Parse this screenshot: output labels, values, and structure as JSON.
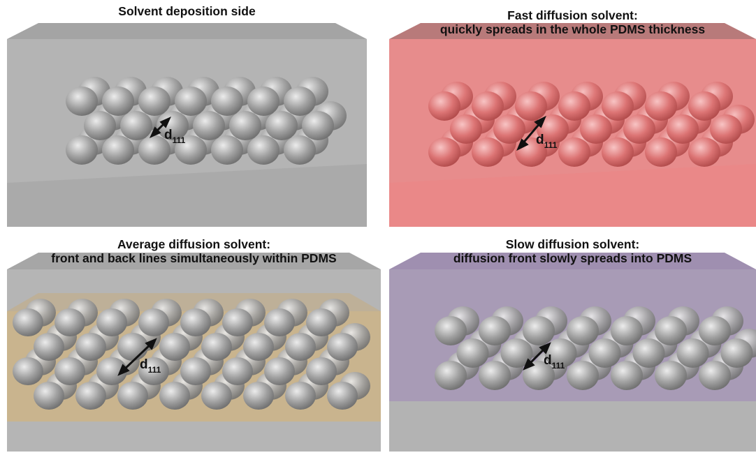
{
  "panels": [
    {
      "id": "p1",
      "caption_lines": [
        "Solvent deposition side"
      ],
      "label_main": "d",
      "label_sub": "111",
      "colors": {
        "top": "#a4a4a4",
        "front": "#b4b4b4",
        "bottom": "#aaaaaa",
        "band": null,
        "sphere_dark": "#6e6e6e",
        "sphere_mid": "#a2a2a2",
        "sphere_light": "#ececec"
      }
    },
    {
      "id": "p2",
      "caption_lines": [
        "Fast diffusion solvent:",
        "quickly spreads in the whole PDMS thickness"
      ],
      "label_main": "d",
      "label_sub": "111",
      "colors": {
        "top": "#b87a7a",
        "front": "#e78c8c",
        "bottom": "#ea8888",
        "band": null,
        "sphere_dark": "#b04a4a",
        "sphere_mid": "#dc7474",
        "sphere_light": "#f8c4c4"
      }
    },
    {
      "id": "p3",
      "caption_lines": [
        "Average diffusion solvent:",
        "front and back lines simultaneously within PDMS"
      ],
      "label_main": "d",
      "label_sub": "111",
      "colors": {
        "top": "#a6a6a6",
        "front": "#b5b5b5",
        "bottom": "#a9a9a9",
        "band": "#c9b48e",
        "sphere_dark": "#6e6e6e",
        "sphere_mid": "#a2a2a2",
        "sphere_light": "#ececec"
      }
    },
    {
      "id": "p4",
      "caption_lines": [
        "Slow diffusion solvent:",
        "diffusion front slowly spreads into PDMS"
      ],
      "label_main": "d",
      "label_sub": "111",
      "colors": {
        "top": "#9f8fb0",
        "front": "#a89bb6",
        "bottom": "#b3b3b3",
        "band": null,
        "sphere_dark": "#6e6e6e",
        "sphere_mid": "#a2a2a2",
        "sphere_light": "#ececec"
      }
    }
  ]
}
